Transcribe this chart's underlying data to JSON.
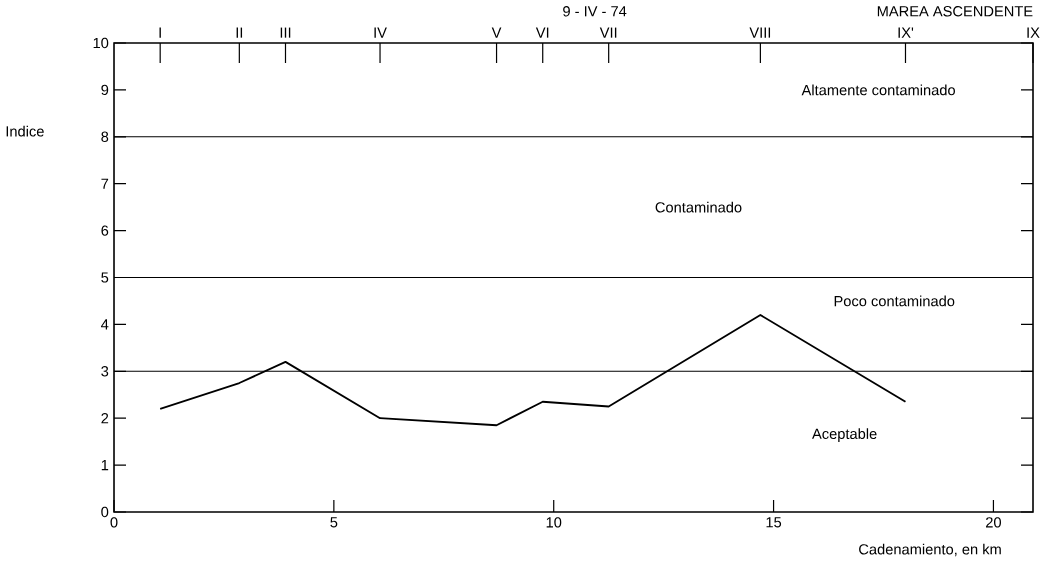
{
  "chart_data": {
    "type": "line",
    "title": "9 - IV - 74",
    "annotations": [
      "MAREA ASCENDENTE",
      "I",
      "II",
      "III",
      "IV",
      "V",
      "VI",
      "VII",
      "VIII",
      "IX'",
      "IX",
      "Altamente contaminado",
      "Contaminado",
      "Poco contaminado",
      "Aceptable"
    ],
    "xlabel": "Cadenamiento, en km",
    "ylabel": "Indice",
    "series": [
      {
        "color": "#000000",
        "x": [
          1.05,
          2.85,
          3.9,
          6.05,
          8.7,
          9.75,
          11.25,
          14.7,
          18.0
        ],
        "values": [
          2.2,
          2.75,
          3.2,
          2.0,
          1.85,
          2.35,
          2.25,
          4.2,
          2.35
        ]
      }
    ],
    "xlim": [
      0,
      20.9
    ],
    "xticks": [
      0,
      5,
      10,
      15,
      20
    ],
    "ylim": [
      0,
      10
    ],
    "yticks": [
      0,
      1,
      2,
      3,
      4,
      5,
      6,
      7,
      8,
      9,
      10
    ],
    "ref_lines": [
      {
        "axis": "y",
        "value": 3
      },
      {
        "axis": "y",
        "value": 5
      },
      {
        "axis": "y",
        "value": 8
      }
    ],
    "marker": "none",
    "line_style": "solid"
  }
}
